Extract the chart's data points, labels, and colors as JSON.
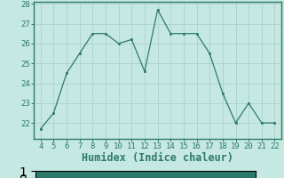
{
  "x": [
    4,
    5,
    6,
    7,
    8,
    9,
    10,
    11,
    12,
    13,
    14,
    15,
    16,
    17,
    18,
    19,
    20,
    21,
    22
  ],
  "y": [
    21.7,
    22.5,
    24.5,
    25.5,
    26.5,
    26.5,
    26.0,
    26.2,
    24.6,
    27.7,
    26.5,
    26.5,
    26.5,
    25.5,
    23.5,
    22.0,
    23.0,
    22.0,
    22.0
  ],
  "line_color": "#2d7a6a",
  "marker_color": "#2d7a6a",
  "bg_color": "#c5e8e2",
  "grid_color": "#afd4ce",
  "xlabel": "Humidex (Indice chaleur)",
  "xlim": [
    3.5,
    22.5
  ],
  "ylim": [
    21.2,
    28.1
  ],
  "yticks": [
    22,
    23,
    24,
    25,
    26,
    27,
    28
  ],
  "xticks": [
    4,
    5,
    6,
    7,
    8,
    9,
    10,
    11,
    12,
    13,
    14,
    15,
    16,
    17,
    18,
    19,
    20,
    21,
    22
  ],
  "tick_labelsize": 6.5,
  "xlabel_fontsize": 8.5,
  "spine_color": "#2d7a6a",
  "bottom_bar_color": "#2d7a6a"
}
